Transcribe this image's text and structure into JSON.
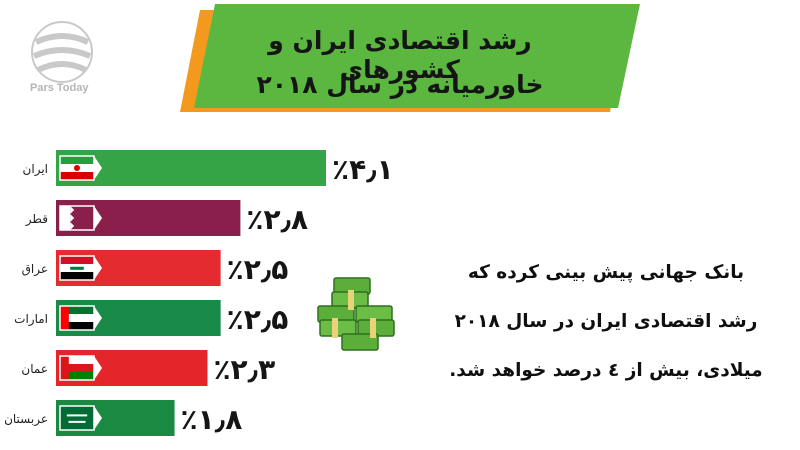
{
  "brand": {
    "logo_text": "Pars Today"
  },
  "title": {
    "line1": "رشد اقتصادی ایران و کشورهای",
    "line2": "خاورمیانه در سال ۲۰۱۸"
  },
  "colors": {
    "banner_green": "#5cb741",
    "banner_orange": "#f39a1e",
    "iran": "#35a447",
    "qatar": "#8a1f4b",
    "iraq": "#e42b2f",
    "uae": "#198a47",
    "oman": "#e4262b",
    "saudi": "#1a8a42"
  },
  "chart_data": {
    "type": "bar",
    "orientation": "horizontal",
    "categories": [
      "ایران",
      "قطر",
      "عراق",
      "امارات",
      "عمان",
      "عربستان"
    ],
    "values": [
      4.1,
      2.8,
      2.5,
      2.5,
      2.3,
      1.8
    ],
    "value_labels": [
      "٪۴٫۱",
      "٪۲٫۸",
      "٪۲٫۵",
      "٪۲٫۵",
      "٪۲٫۳",
      "٪۱٫۸"
    ],
    "flag_icons": [
      "iran-flag-icon",
      "qatar-flag-icon",
      "iraq-flag-icon",
      "uae-flag-icon",
      "oman-flag-icon",
      "saudi-flag-icon"
    ],
    "xlim": [
      0,
      4.1
    ]
  },
  "note": {
    "line1": "بانک جهانی پیش بینی کرده که",
    "line2": "رشد اقتصادی ایران در سال ۲۰۱۸",
    "line3": "میلادی، بیش از ٤ درصد خواهد شد."
  }
}
